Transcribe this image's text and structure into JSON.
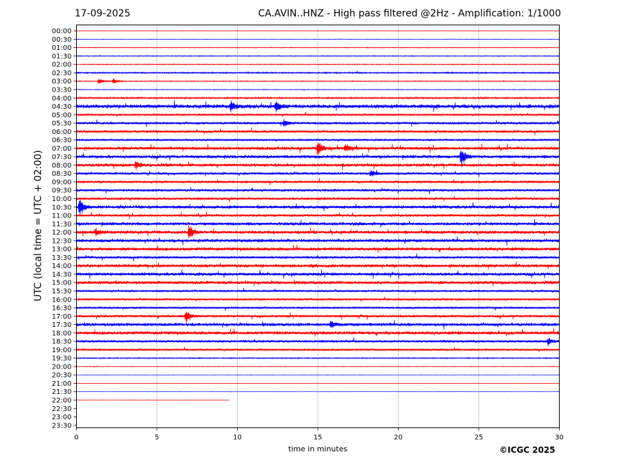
{
  "header": {
    "date": "17-09-2025",
    "title": "CA.AVIN..HNZ - High pass filtered @2Hz - Amplification: 1/1000"
  },
  "footer": {
    "copyright": "©ICGC 2025"
  },
  "chart_data": {
    "type": "line",
    "title": "CA.AVIN..HNZ - High pass filtered @2Hz - Amplification: 1/1000",
    "xlabel": "time in minutes",
    "ylabel": "UTC (local time = UTC + 02:00)",
    "xlim": [
      0,
      30
    ],
    "x_ticks": [
      0,
      5,
      10,
      15,
      20,
      25,
      30
    ],
    "grid": "vertical dotted at 5-minute ticks",
    "colors": {
      "odd_traces": "#ff0000",
      "even_traces": "#0000ff"
    },
    "rows": [
      "00:00",
      "00:30",
      "01:00",
      "01:30",
      "02:00",
      "02:30",
      "03:00",
      "03:30",
      "04:00",
      "04:30",
      "05:00",
      "05:30",
      "06:00",
      "06:30",
      "07:00",
      "07:30",
      "08:00",
      "08:30",
      "09:00",
      "09:30",
      "10:00",
      "10:30",
      "11:00",
      "11:30",
      "12:00",
      "12:30",
      "13:00",
      "13:30",
      "14:00",
      "14:30",
      "15:00",
      "15:30",
      "16:00",
      "16:30",
      "17:00",
      "17:30",
      "18:00",
      "18:30",
      "19:00",
      "19:30",
      "20:00",
      "20:30",
      "21:00",
      "21:30",
      "22:00",
      "22:30",
      "23:00",
      "23:30"
    ],
    "noise_level": [
      0.3,
      0.3,
      0.5,
      0.6,
      0.6,
      1.0,
      0.6,
      0.4,
      1.2,
      3.0,
      1.5,
      2.0,
      2.0,
      1.5,
      2.5,
      2.5,
      2.5,
      2.0,
      2.0,
      2.0,
      2.0,
      2.5,
      2.0,
      2.5,
      2.5,
      2.5,
      2.5,
      2.0,
      2.5,
      2.5,
      2.5,
      1.5,
      1.5,
      1.5,
      2.0,
      2.5,
      2.5,
      2.0,
      1.5,
      0.8,
      0.4,
      0.2,
      0.2,
      0.2,
      0.2,
      0,
      0,
      0
    ],
    "trace_end_minutes": [
      30,
      30,
      30,
      30,
      30,
      30,
      30,
      30,
      30,
      30,
      30,
      30,
      30,
      30,
      30,
      30,
      30,
      30,
      30,
      30,
      30,
      30,
      30,
      30,
      30,
      30,
      30,
      30,
      30,
      30,
      30,
      30,
      30,
      30,
      30,
      30,
      30,
      30,
      30,
      30,
      30,
      30,
      30,
      30,
      9.5,
      0,
      0,
      0
    ],
    "events": [
      {
        "row": "03:00",
        "minute": 1.4,
        "amplitude": 6
      },
      {
        "row": "03:00",
        "minute": 2.3,
        "amplitude": 5
      },
      {
        "row": "04:30",
        "minute": 9.6,
        "amplitude": 8
      },
      {
        "row": "04:30",
        "minute": 12.4,
        "amplitude": 9
      },
      {
        "row": "05:30",
        "minute": 12.9,
        "amplitude": 6
      },
      {
        "row": "07:00",
        "minute": 15.0,
        "amplitude": 14
      },
      {
        "row": "07:00",
        "minute": 16.7,
        "amplitude": 7
      },
      {
        "row": "07:30",
        "minute": 23.9,
        "amplitude": 18
      },
      {
        "row": "08:00",
        "minute": 3.7,
        "amplitude": 7
      },
      {
        "row": "08:30",
        "minute": 18.3,
        "amplitude": 6
      },
      {
        "row": "10:30",
        "minute": 0.2,
        "amplitude": 16
      },
      {
        "row": "12:00",
        "minute": 7.0,
        "amplitude": 14
      },
      {
        "row": "12:00",
        "minute": 1.2,
        "amplitude": 6
      },
      {
        "row": "17:00",
        "minute": 6.8,
        "amplitude": 12
      },
      {
        "row": "17:30",
        "minute": 15.8,
        "amplitude": 6
      },
      {
        "row": "18:30",
        "minute": 29.3,
        "amplitude": 6
      }
    ]
  }
}
